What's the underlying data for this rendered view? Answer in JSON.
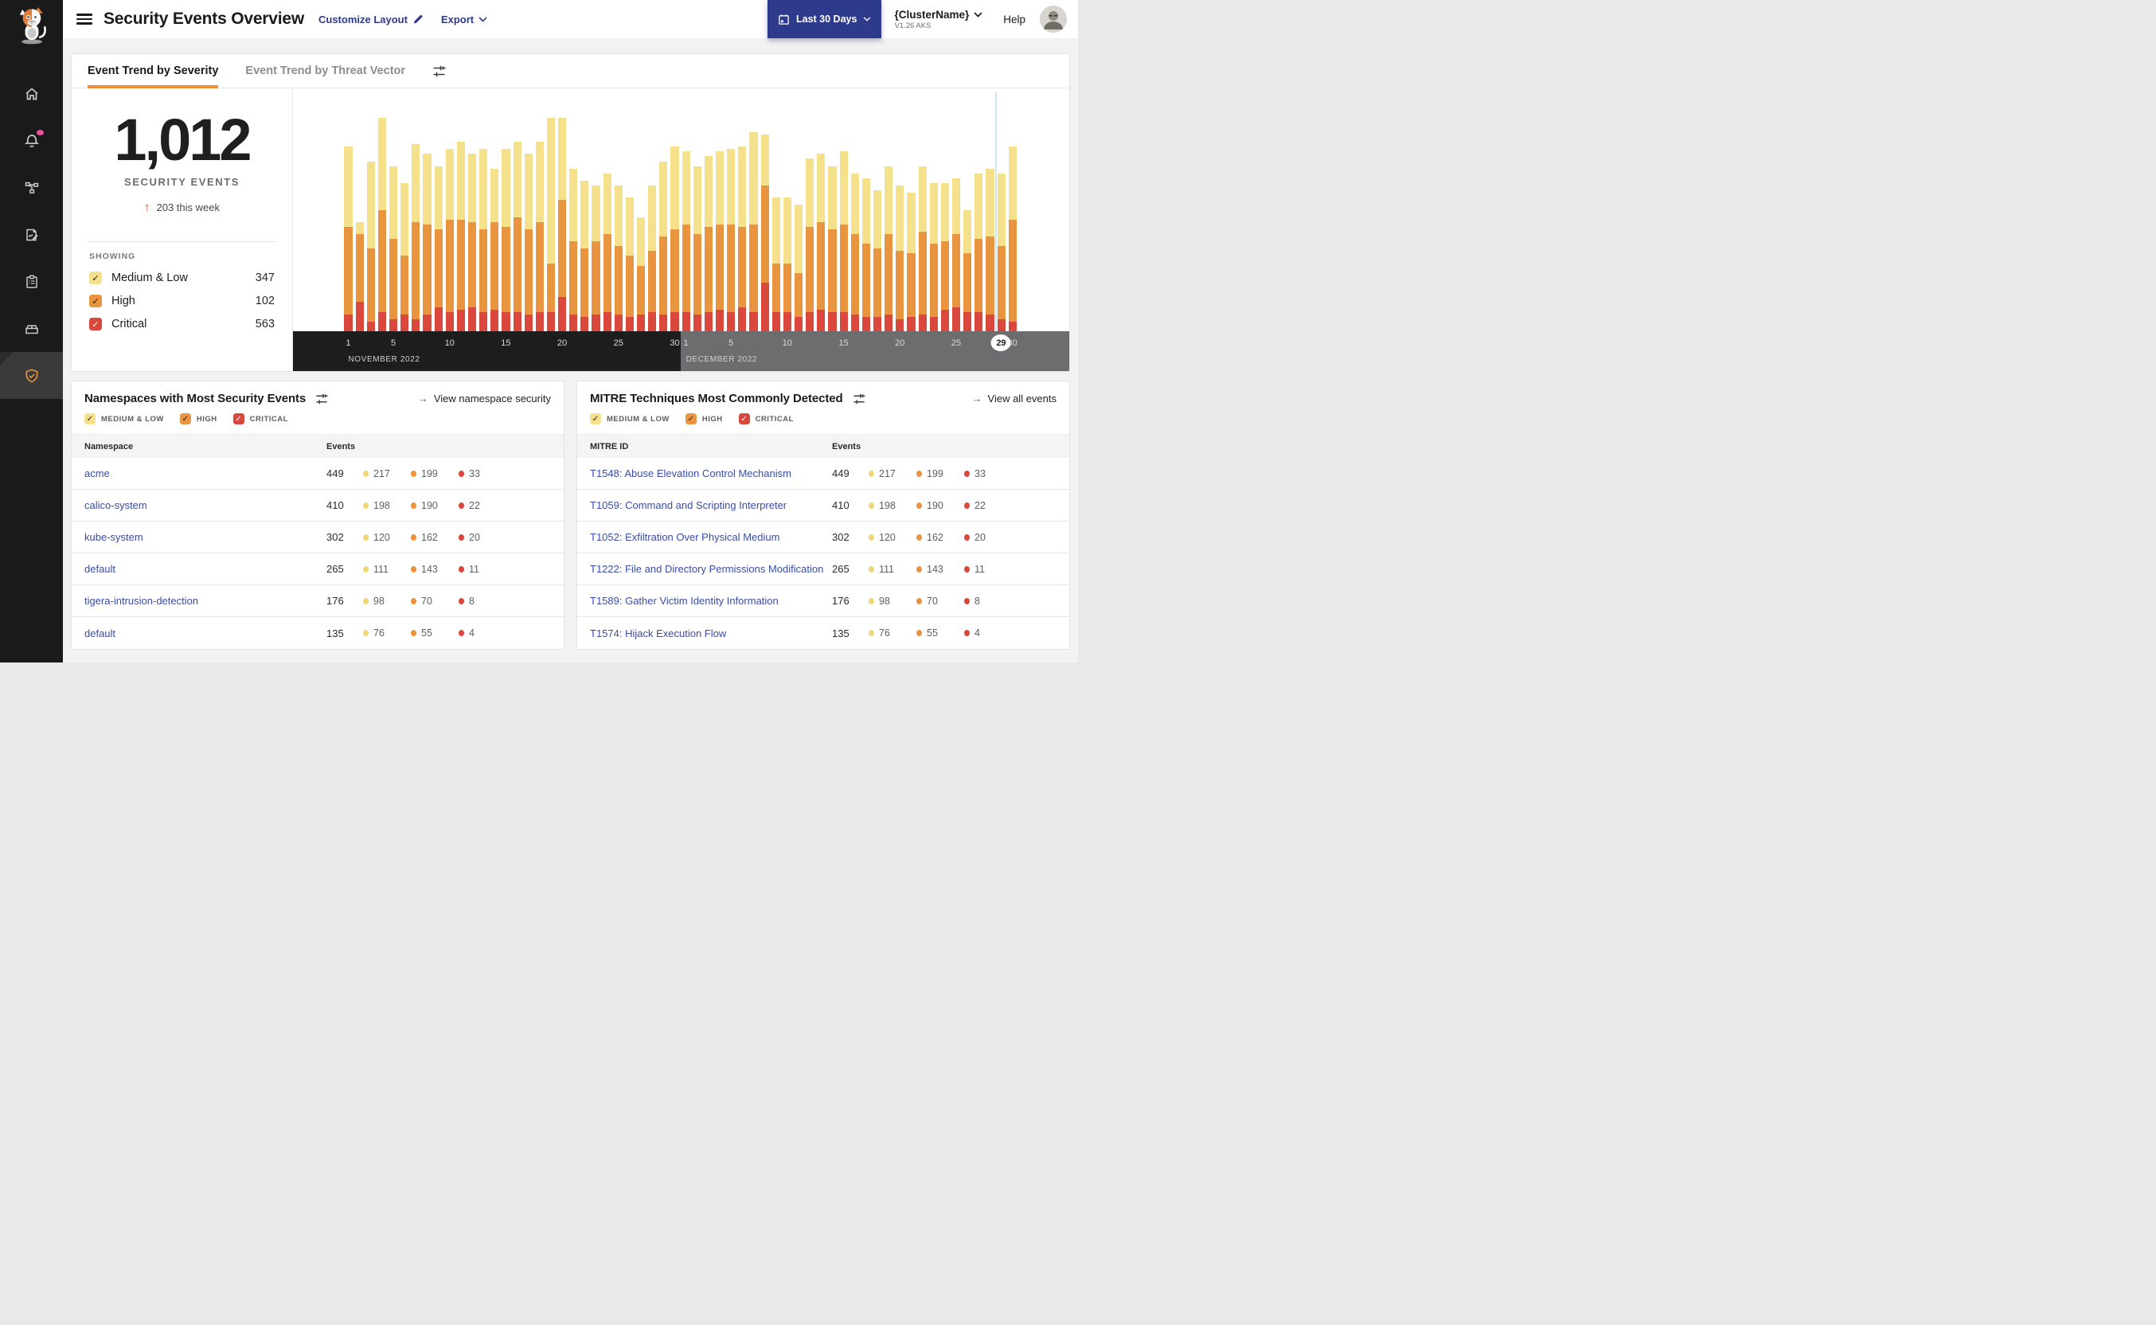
{
  "colors": {
    "medium_low": "#f5e18c",
    "medium_low_dot": "#f0d77d",
    "high": "#e9953f",
    "critical": "#d9473d",
    "indigo": "#2e3a8c",
    "link_blue": "#3a4da6",
    "tab_underline": "#ef9038",
    "notification_pink": "#ef4f9a",
    "chart_highlight_line": "#cfe7f4"
  },
  "sidebar": {
    "icons": [
      "cat-logo",
      "home",
      "notifications",
      "network-topology",
      "report-edit",
      "clipboard",
      "storage-box",
      "security-shield"
    ]
  },
  "header": {
    "title": "Security Events Overview",
    "customize_label": "Customize Layout",
    "export_label": "Export",
    "date_range_label": "Last 30 Days",
    "cluster_name": "{ClusterName}",
    "cluster_version": "V1.26 AKS",
    "help_label": "Help"
  },
  "tabs": {
    "items": [
      {
        "label": "Event Trend by Severity",
        "active": true
      },
      {
        "label": "Event Trend by Threat Vector",
        "active": false
      }
    ]
  },
  "stats": {
    "total": "1,012",
    "label": "SECURITY EVENTS",
    "delta_arrow": "↑",
    "delta_text": "203 this week",
    "showing_label": "SHOWING",
    "severities": [
      {
        "key": "medium_low",
        "label": "Medium & Low",
        "count": "347"
      },
      {
        "key": "high",
        "label": "High",
        "count": "102"
      },
      {
        "key": "critical",
        "label": "Critical",
        "count": "563"
      }
    ]
  },
  "severity_legend": [
    {
      "key": "medium_low",
      "label": "MEDIUM & LOW"
    },
    {
      "key": "high",
      "label": "HIGH"
    },
    {
      "key": "critical",
      "label": "CRITICAL"
    }
  ],
  "chart_data": {
    "type": "bar",
    "stacked": true,
    "unit": "relative height, % of plot (no y-axis labels shown)",
    "categories": [
      "Nov 1",
      "Nov 2",
      "Nov 3",
      "Nov 4",
      "Nov 5",
      "Nov 6",
      "Nov 7",
      "Nov 8",
      "Nov 9",
      "Nov 10",
      "Nov 11",
      "Nov 12",
      "Nov 13",
      "Nov 14",
      "Nov 15",
      "Nov 16",
      "Nov 17",
      "Nov 18",
      "Nov 19",
      "Nov 20",
      "Nov 21",
      "Nov 22",
      "Nov 23",
      "Nov 24",
      "Nov 25",
      "Nov 26",
      "Nov 27",
      "Nov 28",
      "Nov 29",
      "Nov 30",
      "Dec 1",
      "Dec 2",
      "Dec 3",
      "Dec 4",
      "Dec 5",
      "Dec 6",
      "Dec 7",
      "Dec 8",
      "Dec 9",
      "Dec 10",
      "Dec 11",
      "Dec 12",
      "Dec 13",
      "Dec 14",
      "Dec 15",
      "Dec 16",
      "Dec 17",
      "Dec 18",
      "Dec 19",
      "Dec 20",
      "Dec 21",
      "Dec 22",
      "Dec 23",
      "Dec 24",
      "Dec 25",
      "Dec 26",
      "Dec 27",
      "Dec 28",
      "Dec 29",
      "Dec 30"
    ],
    "series": [
      {
        "key": "medium_low",
        "name": "Medium & Low",
        "color": "#f5e18c",
        "values": [
          33,
          5,
          36,
          38,
          30,
          30,
          32,
          29,
          26,
          29,
          32,
          28,
          33,
          22,
          32,
          31,
          31,
          33,
          60,
          34,
          30,
          28,
          23,
          25,
          25,
          24,
          20,
          27,
          31,
          34,
          30,
          28,
          29,
          30,
          31,
          33,
          38,
          21,
          27,
          27,
          28,
          28,
          28,
          26,
          30,
          25,
          27,
          24,
          28,
          27,
          25,
          27,
          25,
          24,
          23,
          18,
          27,
          28,
          30,
          30
        ]
      },
      {
        "key": "high",
        "name": "High",
        "color": "#e9953f",
        "values": [
          36,
          28,
          30,
          42,
          33,
          24,
          40,
          37,
          32,
          38,
          37,
          35,
          34,
          36,
          35,
          39,
          35,
          37,
          20,
          40,
          30,
          28,
          30,
          32,
          28,
          25,
          20,
          25,
          32,
          34,
          36,
          33,
          35,
          35,
          36,
          33,
          36,
          40,
          20,
          20,
          18,
          35,
          36,
          34,
          36,
          33,
          30,
          28,
          33,
          28,
          26,
          34,
          30,
          28,
          30,
          24,
          30,
          32,
          30,
          42
        ]
      },
      {
        "key": "critical",
        "name": "Critical",
        "color": "#d9473d",
        "values": [
          7,
          12,
          4,
          8,
          5,
          7,
          5,
          7,
          10,
          8,
          9,
          10,
          8,
          9,
          8,
          8,
          7,
          8,
          8,
          14,
          7,
          6,
          7,
          8,
          7,
          6,
          7,
          8,
          7,
          8,
          8,
          7,
          8,
          9,
          8,
          10,
          8,
          20,
          8,
          8,
          6,
          8,
          9,
          8,
          8,
          7,
          6,
          6,
          7,
          5,
          6,
          7,
          6,
          9,
          10,
          8,
          8,
          7,
          5,
          4
        ]
      }
    ],
    "x_axis": {
      "months": [
        {
          "label": "NOVEMBER 2022",
          "days": 30,
          "ticks": [
            "1",
            "5",
            "10",
            "15",
            "20",
            "25",
            "30"
          ]
        },
        {
          "label": "DECEMBER 2022",
          "days": 30,
          "ticks": [
            "1",
            "5",
            "10",
            "15",
            "20",
            "25",
            "30"
          ]
        }
      ],
      "highlight": {
        "month_index": 1,
        "day": "29"
      }
    },
    "legend_position": "left panel checkboxes",
    "grid": false
  },
  "panels": {
    "namespaces": {
      "title": "Namespaces with Most Security Events",
      "link_arrow": "→",
      "link": "View namespace security",
      "columns": [
        "Namespace",
        "Events"
      ],
      "rows": [
        {
          "name": "acme",
          "total": "449",
          "medium_low": "217",
          "high": "199",
          "critical": "33"
        },
        {
          "name": "calico-system",
          "total": "410",
          "medium_low": "198",
          "high": "190",
          "critical": "22"
        },
        {
          "name": "kube-system",
          "total": "302",
          "medium_low": "120",
          "high": "162",
          "critical": "20"
        },
        {
          "name": "default",
          "total": "265",
          "medium_low": "111",
          "high": "143",
          "critical": "11"
        },
        {
          "name": "tigera-intrusion-detection",
          "total": "176",
          "medium_low": "98",
          "high": "70",
          "critical": "8"
        },
        {
          "name": "default",
          "total": "135",
          "medium_low": "76",
          "high": "55",
          "critical": "4"
        }
      ]
    },
    "mitre": {
      "title": "MITRE Techniques Most Commonly Detected",
      "link_arrow": "→",
      "link": "View all events",
      "columns": [
        "MITRE ID",
        "Events"
      ],
      "rows": [
        {
          "name": "T1548: Abuse Elevation Control Mechanism",
          "total": "449",
          "medium_low": "217",
          "high": "199",
          "critical": "33"
        },
        {
          "name": "T1059: Command and Scripting Interpreter",
          "total": "410",
          "medium_low": "198",
          "high": "190",
          "critical": "22"
        },
        {
          "name": "T1052: Exfiltration Over Physical Medium",
          "total": "302",
          "medium_low": "120",
          "high": "162",
          "critical": "20"
        },
        {
          "name": "T1222: File and Directory Permissions Modification",
          "total": "265",
          "medium_low": "111",
          "high": "143",
          "critical": "11"
        },
        {
          "name": "T1589: Gather Victim Identity Information",
          "total": "176",
          "medium_low": "98",
          "high": "70",
          "critical": "8"
        },
        {
          "name": "T1574: Hijack Execution Flow",
          "total": "135",
          "medium_low": "76",
          "high": "55",
          "critical": "4"
        }
      ]
    }
  }
}
